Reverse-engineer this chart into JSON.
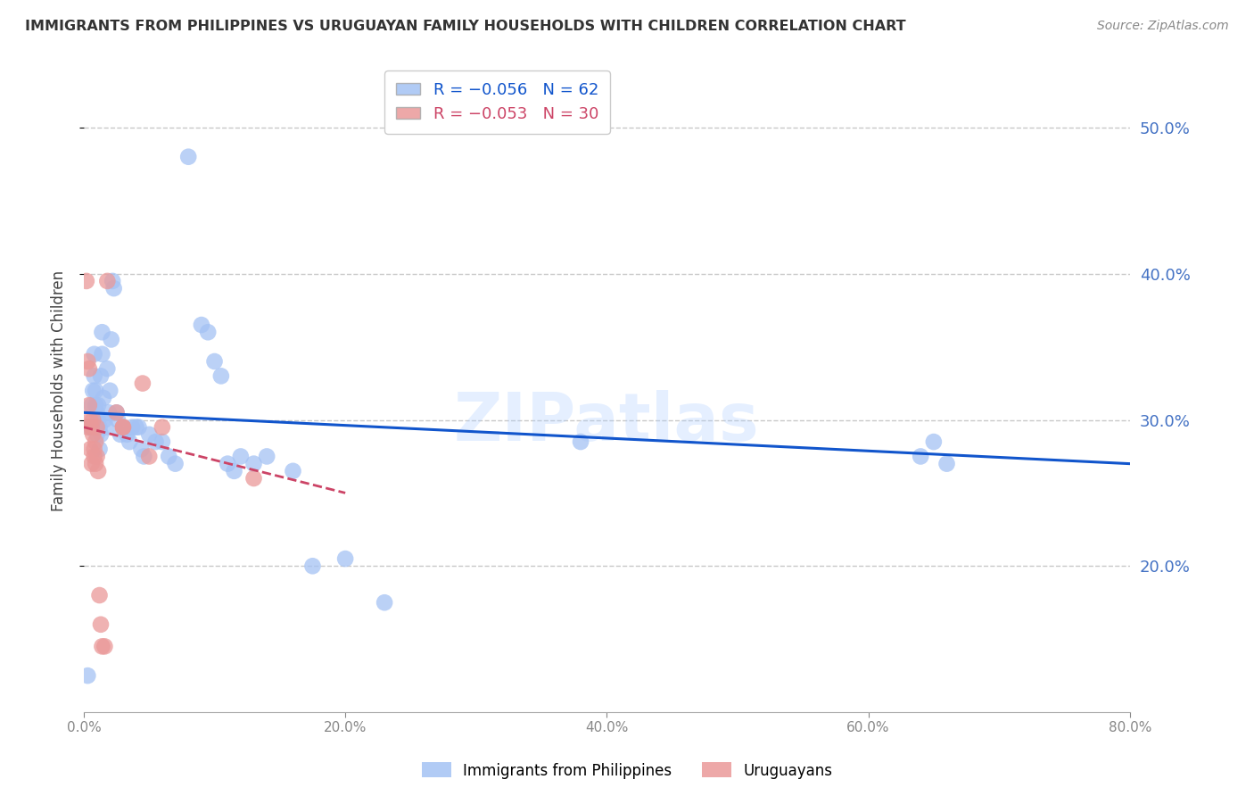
{
  "title": "IMMIGRANTS FROM PHILIPPINES VS URUGUAYAN FAMILY HOUSEHOLDS WITH CHILDREN CORRELATION CHART",
  "source": "Source: ZipAtlas.com",
  "ylabel": "Family Households with Children",
  "legend_blue_r": "R = −0.056",
  "legend_blue_n": "N = 62",
  "legend_pink_r": "R = −0.053",
  "legend_pink_n": "N = 30",
  "xlim": [
    0.0,
    0.8
  ],
  "ylim": [
    0.1,
    0.54
  ],
  "yticks": [
    0.2,
    0.3,
    0.4,
    0.5
  ],
  "xticks": [
    0.0,
    0.2,
    0.4,
    0.6,
    0.8
  ],
  "background_color": "#ffffff",
  "grid_color": "#c8c8c8",
  "blue_color": "#a4c2f4",
  "pink_color": "#ea9999",
  "blue_line_color": "#1155cc",
  "pink_line_color": "#cc4466",
  "title_color": "#333333",
  "axis_label_color": "#4472c4",
  "watermark": "ZIPatlas",
  "blue_x": [
    0.003,
    0.005,
    0.006,
    0.007,
    0.007,
    0.008,
    0.008,
    0.009,
    0.009,
    0.01,
    0.01,
    0.011,
    0.011,
    0.012,
    0.012,
    0.013,
    0.013,
    0.014,
    0.014,
    0.015,
    0.016,
    0.017,
    0.018,
    0.019,
    0.02,
    0.021,
    0.022,
    0.023,
    0.025,
    0.026,
    0.028,
    0.03,
    0.033,
    0.035,
    0.037,
    0.04,
    0.042,
    0.044,
    0.046,
    0.05,
    0.055,
    0.06,
    0.065,
    0.07,
    0.08,
    0.09,
    0.095,
    0.1,
    0.105,
    0.11,
    0.115,
    0.12,
    0.13,
    0.14,
    0.16,
    0.175,
    0.2,
    0.23,
    0.38,
    0.64,
    0.65,
    0.66
  ],
  "blue_y": [
    0.125,
    0.295,
    0.31,
    0.32,
    0.295,
    0.345,
    0.33,
    0.32,
    0.31,
    0.305,
    0.29,
    0.3,
    0.31,
    0.295,
    0.28,
    0.29,
    0.33,
    0.345,
    0.36,
    0.315,
    0.3,
    0.295,
    0.335,
    0.305,
    0.32,
    0.355,
    0.395,
    0.39,
    0.305,
    0.3,
    0.29,
    0.295,
    0.29,
    0.285,
    0.295,
    0.295,
    0.295,
    0.28,
    0.275,
    0.29,
    0.285,
    0.285,
    0.275,
    0.27,
    0.48,
    0.365,
    0.36,
    0.34,
    0.33,
    0.27,
    0.265,
    0.275,
    0.27,
    0.275,
    0.265,
    0.2,
    0.205,
    0.175,
    0.285,
    0.275,
    0.285,
    0.27
  ],
  "pink_x": [
    0.002,
    0.003,
    0.003,
    0.004,
    0.004,
    0.005,
    0.005,
    0.006,
    0.006,
    0.007,
    0.007,
    0.008,
    0.008,
    0.009,
    0.009,
    0.01,
    0.01,
    0.011,
    0.012,
    0.013,
    0.014,
    0.016,
    0.018,
    0.025,
    0.03,
    0.03,
    0.045,
    0.05,
    0.06,
    0.13
  ],
  "pink_y": [
    0.395,
    0.34,
    0.295,
    0.335,
    0.31,
    0.3,
    0.28,
    0.295,
    0.27,
    0.3,
    0.29,
    0.28,
    0.275,
    0.285,
    0.27,
    0.295,
    0.275,
    0.265,
    0.18,
    0.16,
    0.145,
    0.145,
    0.395,
    0.305,
    0.295,
    0.295,
    0.325,
    0.275,
    0.295,
    0.26
  ],
  "blue_trend_x0": 0.0,
  "blue_trend_x1": 0.8,
  "blue_trend_y0": 0.305,
  "blue_trend_y1": 0.27,
  "pink_trend_x0": 0.0,
  "pink_trend_x1": 0.2,
  "pink_trend_y0": 0.295,
  "pink_trend_y1": 0.25
}
